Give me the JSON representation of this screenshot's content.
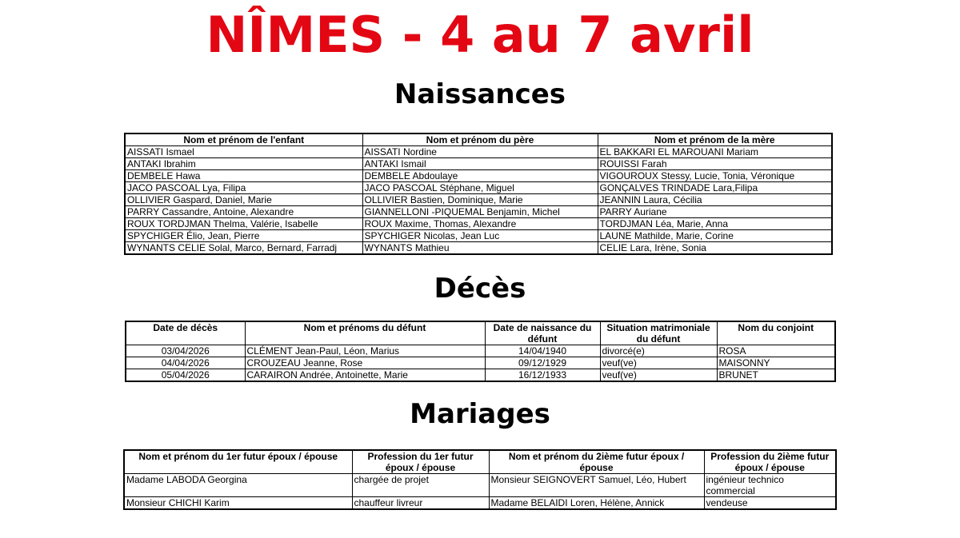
{
  "title": "NÎMES - 4 au 7 avril",
  "title_color": "#e30613",
  "naissances": {
    "heading": "Naissances",
    "columns": [
      "Nom et prénom de l'enfant",
      "Nom et prénom du père",
      "Nom et prénom de la mère"
    ],
    "rows": [
      [
        "AISSATI Ismael",
        "AISSATI Nordine",
        "EL BAKKARI EL MAROUANI Mariam"
      ],
      [
        "ANTAKI Ibrahim",
        "ANTAKI Ismail",
        "ROUISSI Farah"
      ],
      [
        "DEMBELE Hawa",
        "DEMBELE Abdoulaye",
        "VIGOUROUX Stessy, Lucie, Tonia, Véronique"
      ],
      [
        "JACO PASCOAL Lya, Filipa",
        "JACO PASCOAL Stéphane, Miguel",
        "GONÇALVES TRINDADE Lara,Filipa"
      ],
      [
        "OLLIVIER Gaspard, Daniel, Marie",
        "OLLIVIER Bastien, Dominique, Marie",
        "JEANNIN Laura, Cécilia"
      ],
      [
        "PARRY Cassandre, Antoine, Alexandre",
        "GIANNELLONI -PIQUEMAL Benjamin, Michel",
        "PARRY Auriane"
      ],
      [
        "ROUX TORDJMAN Thelma, Valérie, Isabelle",
        "ROUX Maxime, Thomas, Alexandre",
        "TORDJMAN Léa, Marie, Anna"
      ],
      [
        "SPYCHIGER Élio, Jean, Pierre",
        "SPYCHIGER Nicolas, Jean Luc",
        "LAUNE Mathilde, Marie, Corine"
      ],
      [
        "WYNANTS CELIE Solal, Marco, Bernard, Farradj",
        "WYNANTS Mathieu",
        "CELIE Lara, Irène, Sonia"
      ]
    ]
  },
  "deces": {
    "heading": "Décès",
    "columns": [
      "Date de décès",
      "Nom et prénoms du défunt",
      "Date de naissance du défunt",
      "Situation matrimoniale du défunt",
      "Nom du conjoint"
    ],
    "rows": [
      [
        "03/04/2026",
        "CLÉMENT Jean-Paul, Léon, Marius",
        "14/04/1940",
        "divorcé(e)",
        "ROSA"
      ],
      [
        "04/04/2026",
        "CROUZEAU Jeanne, Rose",
        "09/12/1929",
        "veuf(ve)",
        "MAISONNY"
      ],
      [
        "05/04/2026",
        "CARAIRON Andrée, Antoinette, Marie",
        "16/12/1933",
        "veuf(ve)",
        "BRUNET"
      ]
    ]
  },
  "mariages": {
    "heading": "Mariages",
    "columns": [
      "Nom et prénom du 1er futur époux / épouse",
      "Profession du 1er futur époux / épouse",
      "Nom et prénom du 2ième futur époux / épouse",
      "Profession du 2ième futur époux / épouse"
    ],
    "rows": [
      [
        "Madame LABODA Georgina",
        "chargée de projet",
        "Monsieur SEIGNOVERT Samuel, Léo, Hubert",
        "ingénieur technico commercial"
      ],
      [
        "Monsieur CHICHI Karim",
        "chauffeur livreur",
        "Madame BELAIDI Loren, Hélène, Annick",
        "vendeuse"
      ]
    ]
  }
}
